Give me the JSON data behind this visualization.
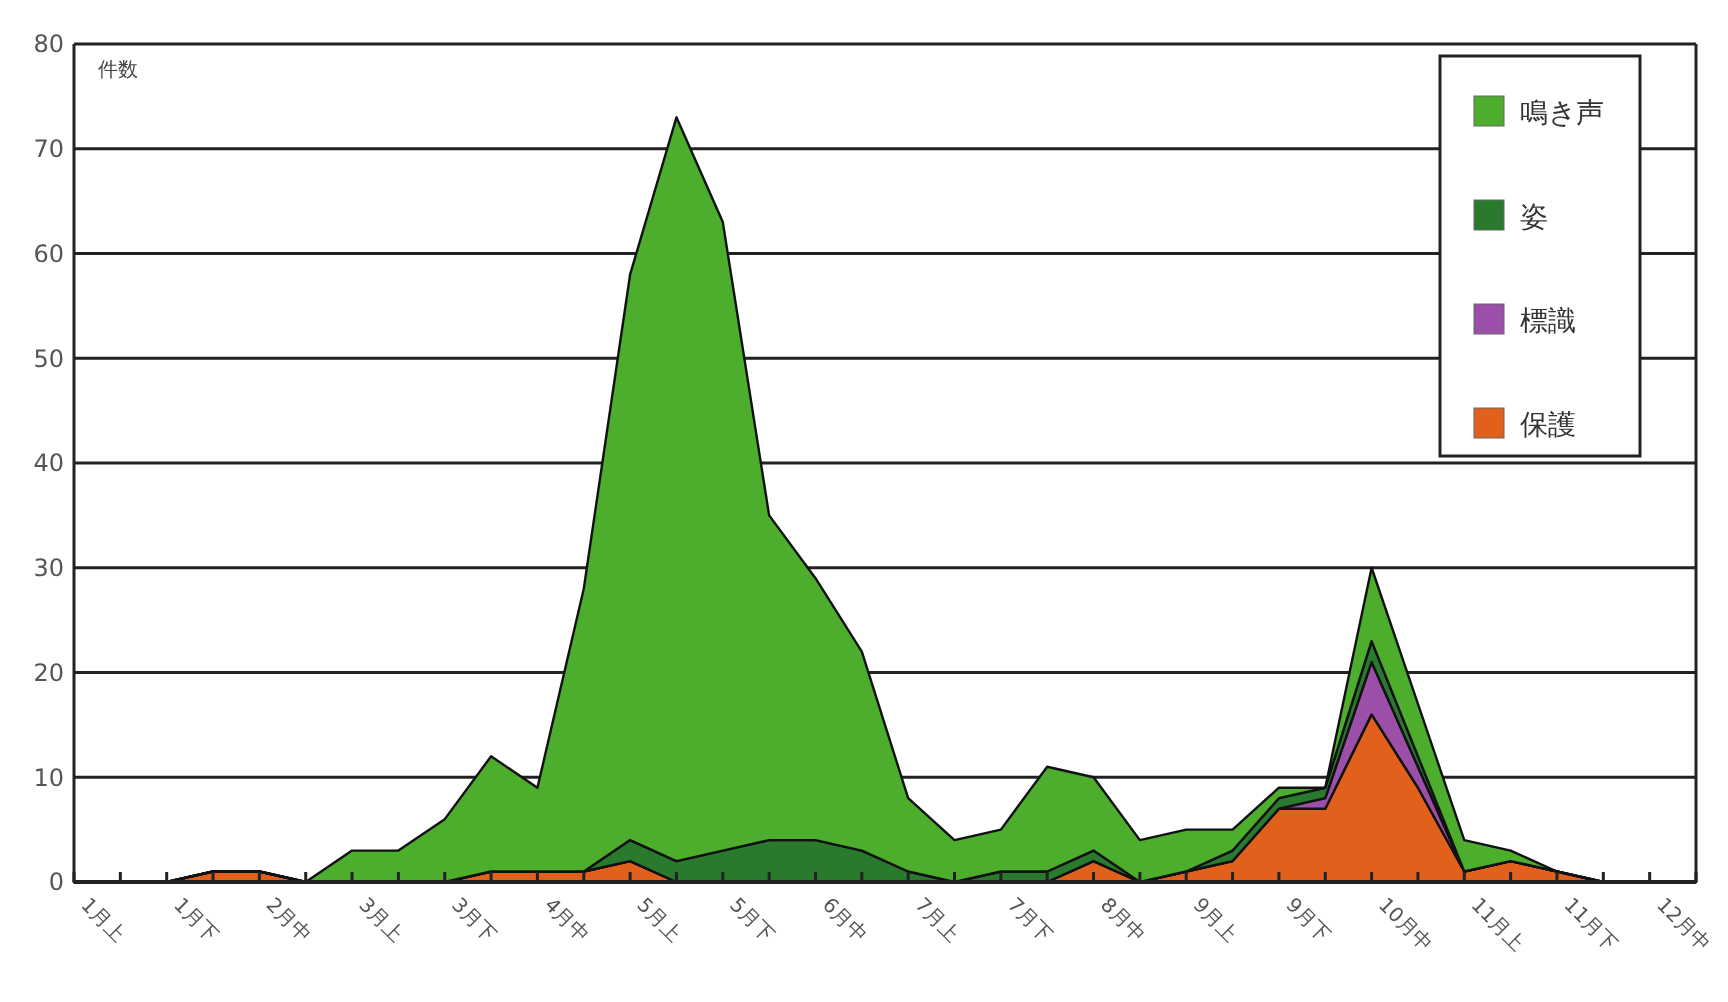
{
  "chart_data": {
    "type": "area",
    "stacked": true,
    "ylabel": "件数",
    "categories": [
      "1月上",
      null,
      "1月下",
      null,
      "2月中",
      null,
      "3月上",
      null,
      "3月下",
      null,
      "4月中",
      null,
      "5月上",
      null,
      "5月下",
      null,
      "6月中",
      null,
      "7月上",
      null,
      "7月下",
      null,
      "8月中",
      null,
      "9月上",
      null,
      "9月下",
      null,
      "10月中",
      null,
      "11月上",
      null,
      "11月下",
      null,
      "12月中",
      null
    ],
    "series": [
      {
        "name": "保護",
        "color": "#e0601c",
        "values": [
          0,
          0,
          0,
          1,
          1,
          0,
          0,
          0,
          0,
          1,
          1,
          1,
          2,
          0,
          0,
          0,
          0,
          0,
          0,
          0,
          0,
          0,
          2,
          0,
          1,
          2,
          7,
          7,
          16,
          9,
          1,
          2,
          1,
          0,
          0,
          0
        ]
      },
      {
        "name": "標識",
        "color": "#9b4fa8",
        "values": [
          0,
          0,
          0,
          0,
          0,
          0,
          0,
          0,
          0,
          0,
          0,
          0,
          0,
          0,
          0,
          0,
          0,
          0,
          0,
          0,
          0,
          0,
          0,
          0,
          0,
          0,
          0,
          1,
          5,
          2,
          0,
          0,
          0,
          0,
          0,
          0
        ]
      },
      {
        "name": "姿",
        "color": "#2a7a2e",
        "values": [
          0,
          0,
          0,
          0,
          0,
          0,
          0,
          0,
          0,
          0,
          0,
          0,
          2,
          2,
          3,
          4,
          4,
          3,
          1,
          0,
          1,
          1,
          1,
          0,
          0,
          1,
          1,
          1,
          2,
          1,
          0,
          0,
          0,
          0,
          0,
          0
        ]
      },
      {
        "name": "鳴き声",
        "color": "#4cae2c",
        "values": [
          0,
          0,
          0,
          0,
          0,
          0,
          3,
          3,
          6,
          11,
          8,
          27,
          54,
          71,
          60,
          31,
          25,
          19,
          7,
          4,
          4,
          10,
          7,
          4,
          4,
          2,
          1,
          0,
          7,
          5,
          3,
          1,
          0,
          0,
          0,
          0
        ]
      }
    ],
    "ylim": [
      0,
      80
    ],
    "yticks": [
      0,
      10,
      20,
      30,
      40,
      50,
      60,
      70,
      80
    ],
    "grid": "y",
    "legend": "top right"
  }
}
